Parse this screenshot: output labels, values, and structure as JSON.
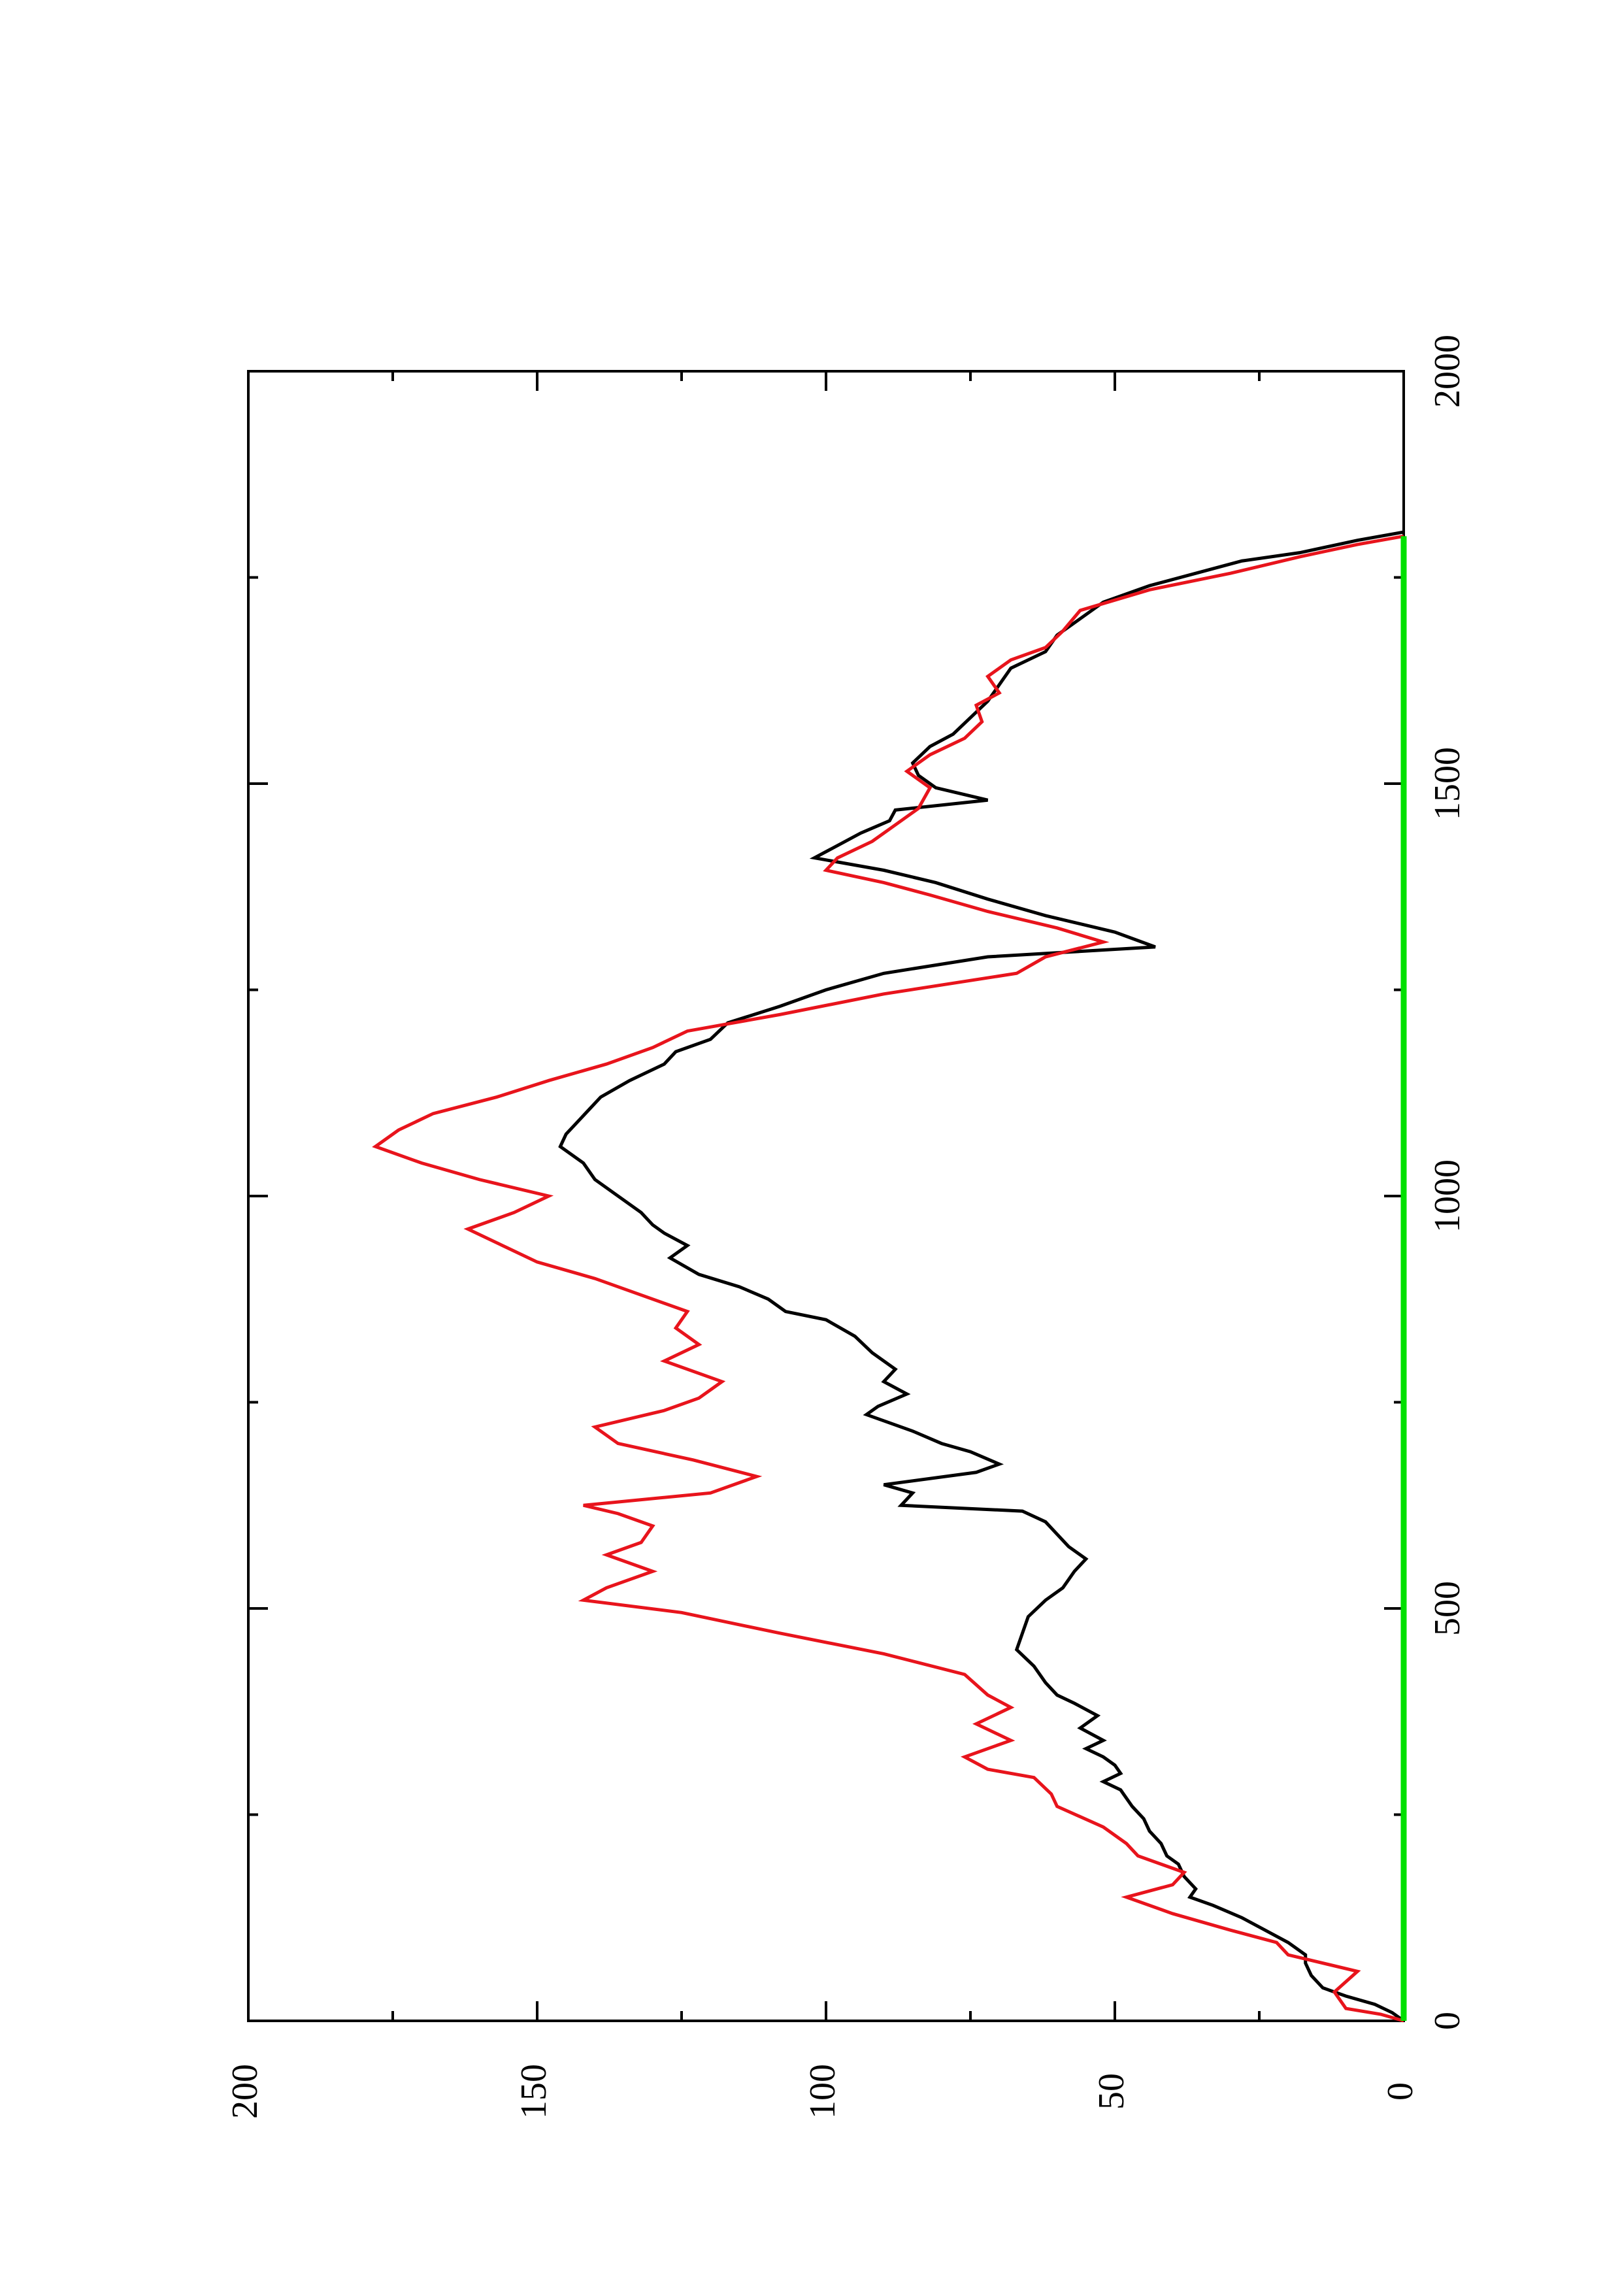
{
  "chart_data": {
    "type": "line",
    "orientation": "rotated-90-ccw",
    "title": "",
    "xlabel": "",
    "ylabel": "",
    "xlim": [
      0,
      2000
    ],
    "ylim": [
      0,
      200
    ],
    "x_ticks": [
      0,
      500,
      1000,
      1500,
      2000
    ],
    "x_minor_ticks": [
      250,
      750,
      1250,
      1750
    ],
    "y_ticks": [
      0,
      50,
      100,
      150,
      200
    ],
    "y_minor_ticks": [
      25,
      75,
      125,
      175
    ],
    "x_tick_labels": [
      "0",
      "500",
      "1000",
      "1500",
      "2000"
    ],
    "y_tick_labels": [
      "0",
      "50",
      "100",
      "150",
      "200"
    ],
    "grid": false,
    "legend": "none",
    "series": [
      {
        "color": "#000000",
        "values": [
          [
            0,
            0
          ],
          [
            10,
            2
          ],
          [
            20,
            5
          ],
          [
            30,
            10
          ],
          [
            40,
            14
          ],
          [
            55,
            16
          ],
          [
            70,
            17
          ],
          [
            80,
            17
          ],
          [
            95,
            20
          ],
          [
            110,
            24
          ],
          [
            125,
            28
          ],
          [
            140,
            33
          ],
          [
            150,
            37
          ],
          [
            160,
            36
          ],
          [
            175,
            38
          ],
          [
            190,
            39
          ],
          [
            200,
            41
          ],
          [
            215,
            42
          ],
          [
            230,
            44
          ],
          [
            245,
            45
          ],
          [
            260,
            47
          ],
          [
            270,
            48
          ],
          [
            280,
            49
          ],
          [
            290,
            52
          ],
          [
            300,
            49
          ],
          [
            310,
            50
          ],
          [
            320,
            52
          ],
          [
            330,
            55
          ],
          [
            340,
            52
          ],
          [
            355,
            56
          ],
          [
            370,
            53
          ],
          [
            385,
            57
          ],
          [
            395,
            60
          ],
          [
            410,
            62
          ],
          [
            430,
            64
          ],
          [
            450,
            67
          ],
          [
            470,
            66
          ],
          [
            490,
            65
          ],
          [
            510,
            62
          ],
          [
            525,
            59
          ],
          [
            545,
            57
          ],
          [
            560,
            55
          ],
          [
            575,
            58
          ],
          [
            590,
            60
          ],
          [
            605,
            62
          ],
          [
            618,
            66
          ],
          [
            625,
            87
          ],
          [
            640,
            85
          ],
          [
            650,
            90
          ],
          [
            665,
            74
          ],
          [
            675,
            70
          ],
          [
            690,
            75
          ],
          [
            700,
            80
          ],
          [
            715,
            85
          ],
          [
            735,
            93
          ],
          [
            745,
            91
          ],
          [
            760,
            86
          ],
          [
            775,
            90
          ],
          [
            790,
            88
          ],
          [
            810,
            92
          ],
          [
            830,
            95
          ],
          [
            850,
            100
          ],
          [
            860,
            107
          ],
          [
            875,
            110
          ],
          [
            890,
            115
          ],
          [
            905,
            122
          ],
          [
            925,
            127
          ],
          [
            940,
            124
          ],
          [
            955,
            128
          ],
          [
            965,
            130
          ],
          [
            980,
            132
          ],
          [
            1000,
            136
          ],
          [
            1020,
            140
          ],
          [
            1040,
            142
          ],
          [
            1060,
            146
          ],
          [
            1075,
            145
          ],
          [
            1090,
            143
          ],
          [
            1105,
            141
          ],
          [
            1120,
            139
          ],
          [
            1140,
            134
          ],
          [
            1160,
            128
          ],
          [
            1175,
            126
          ],
          [
            1190,
            120
          ],
          [
            1210,
            117
          ],
          [
            1230,
            108
          ],
          [
            1250,
            100
          ],
          [
            1270,
            90
          ],
          [
            1290,
            72
          ],
          [
            1302,
            43
          ],
          [
            1320,
            50
          ],
          [
            1340,
            62
          ],
          [
            1360,
            72
          ],
          [
            1380,
            81
          ],
          [
            1395,
            90
          ],
          [
            1410,
            102
          ],
          [
            1425,
            98
          ],
          [
            1440,
            94
          ],
          [
            1455,
            89
          ],
          [
            1468,
            88
          ],
          [
            1480,
            72
          ],
          [
            1495,
            81
          ],
          [
            1510,
            84
          ],
          [
            1525,
            85
          ],
          [
            1545,
            82
          ],
          [
            1560,
            78
          ],
          [
            1580,
            75
          ],
          [
            1600,
            72
          ],
          [
            1620,
            70
          ],
          [
            1640,
            68
          ],
          [
            1660,
            62
          ],
          [
            1680,
            60
          ],
          [
            1700,
            56
          ],
          [
            1720,
            52
          ],
          [
            1740,
            44
          ],
          [
            1755,
            36
          ],
          [
            1770,
            28
          ],
          [
            1780,
            18
          ],
          [
            1795,
            8
          ],
          [
            1805,
            0
          ]
        ]
      },
      {
        "color": "#e8141c",
        "values": [
          [
            0,
            0
          ],
          [
            8,
            4
          ],
          [
            15,
            10
          ],
          [
            35,
            12
          ],
          [
            60,
            8
          ],
          [
            80,
            20
          ],
          [
            95,
            22
          ],
          [
            110,
            30
          ],
          [
            130,
            40
          ],
          [
            150,
            48
          ],
          [
            165,
            40
          ],
          [
            180,
            38
          ],
          [
            200,
            46
          ],
          [
            215,
            48
          ],
          [
            235,
            52
          ],
          [
            260,
            60
          ],
          [
            275,
            61
          ],
          [
            295,
            64
          ],
          [
            305,
            72
          ],
          [
            320,
            76
          ],
          [
            340,
            68
          ],
          [
            360,
            74
          ],
          [
            380,
            68
          ],
          [
            395,
            72
          ],
          [
            420,
            76
          ],
          [
            445,
            90
          ],
          [
            470,
            108
          ],
          [
            495,
            125
          ],
          [
            510,
            142
          ],
          [
            525,
            138
          ],
          [
            545,
            130
          ],
          [
            565,
            138
          ],
          [
            580,
            132
          ],
          [
            600,
            130
          ],
          [
            615,
            136
          ],
          [
            625,
            142
          ],
          [
            640,
            120
          ],
          [
            660,
            112
          ],
          [
            680,
            123
          ],
          [
            700,
            136
          ],
          [
            720,
            140
          ],
          [
            740,
            128
          ],
          [
            755,
            122
          ],
          [
            775,
            118
          ],
          [
            800,
            128
          ],
          [
            820,
            122
          ],
          [
            840,
            126
          ],
          [
            860,
            124
          ],
          [
            880,
            132
          ],
          [
            900,
            140
          ],
          [
            920,
            150
          ],
          [
            940,
            156
          ],
          [
            960,
            162
          ],
          [
            980,
            154
          ],
          [
            1000,
            148
          ],
          [
            1020,
            160
          ],
          [
            1040,
            170
          ],
          [
            1060,
            178
          ],
          [
            1080,
            174
          ],
          [
            1100,
            168
          ],
          [
            1120,
            157
          ],
          [
            1140,
            148
          ],
          [
            1160,
            138
          ],
          [
            1180,
            130
          ],
          [
            1200,
            124
          ],
          [
            1220,
            108
          ],
          [
            1245,
            90
          ],
          [
            1270,
            67
          ],
          [
            1290,
            62
          ],
          [
            1308,
            52
          ],
          [
            1325,
            60
          ],
          [
            1345,
            72
          ],
          [
            1365,
            82
          ],
          [
            1380,
            90
          ],
          [
            1395,
            100
          ],
          [
            1410,
            98
          ],
          [
            1430,
            92
          ],
          [
            1450,
            88
          ],
          [
            1470,
            84
          ],
          [
            1495,
            82
          ],
          [
            1515,
            86
          ],
          [
            1535,
            82
          ],
          [
            1555,
            76
          ],
          [
            1575,
            73
          ],
          [
            1595,
            74
          ],
          [
            1610,
            70
          ],
          [
            1630,
            72
          ],
          [
            1650,
            68
          ],
          [
            1665,
            62
          ],
          [
            1685,
            59
          ],
          [
            1710,
            56
          ],
          [
            1735,
            44
          ],
          [
            1755,
            30
          ],
          [
            1775,
            18
          ],
          [
            1790,
            8
          ],
          [
            1800,
            0
          ]
        ]
      },
      {
        "color": "#00e000",
        "values": [
          [
            0,
            0
          ],
          [
            1800,
            0
          ]
        ]
      }
    ]
  }
}
